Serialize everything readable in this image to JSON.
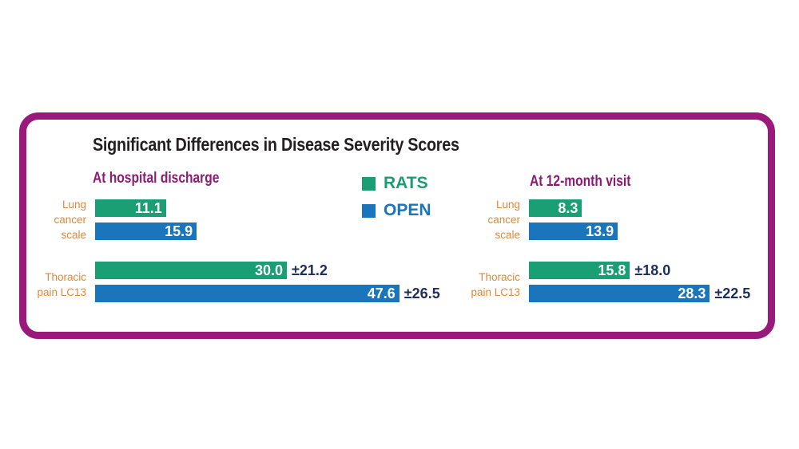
{
  "chart_data": {
    "type": "bar",
    "title": "Significant Differences in Disease Severity Scores",
    "legend": [
      {
        "name": "RATS",
        "color": "#1a9e74"
      },
      {
        "name": "OPEN",
        "color": "#1a75bc"
      }
    ],
    "panels": [
      {
        "label": "At hospital discharge",
        "categories": [
          {
            "label_lines": [
              "Lung",
              "cancer",
              "scale"
            ],
            "bars": [
              {
                "series": "RATS",
                "value": 11.1,
                "label": "11.1",
                "sd": ""
              },
              {
                "series": "OPEN",
                "value": 15.9,
                "label": "15.9",
                "sd": ""
              }
            ]
          },
          {
            "label_lines": [
              "Thoracic",
              "pain LC13"
            ],
            "bars": [
              {
                "series": "RATS",
                "value": 30.0,
                "label": "30.0",
                "sd": "±21.2"
              },
              {
                "series": "OPEN",
                "value": 47.6,
                "label": "47.6",
                "sd": "±26.5"
              }
            ]
          }
        ]
      },
      {
        "label": "At 12-month visit",
        "categories": [
          {
            "label_lines": [
              "Lung",
              "cancer",
              "scale"
            ],
            "bars": [
              {
                "series": "RATS",
                "value": 8.3,
                "label": "8.3",
                "sd": ""
              },
              {
                "series": "OPEN",
                "value": 13.9,
                "label": "13.9",
                "sd": ""
              }
            ]
          },
          {
            "label_lines": [
              "Thoracic",
              "pain LC13"
            ],
            "bars": [
              {
                "series": "RATS",
                "value": 15.8,
                "label": "15.8",
                "sd": "±18.0"
              },
              {
                "series": "OPEN",
                "value": 28.3,
                "label": "28.3",
                "sd": "±22.5"
              }
            ]
          }
        ]
      }
    ],
    "colors": {
      "frame": "#9a1a7c",
      "panel_label": "#8e1a76",
      "category_label": "#e0883a",
      "sd_text": "#1f2d5a"
    }
  }
}
